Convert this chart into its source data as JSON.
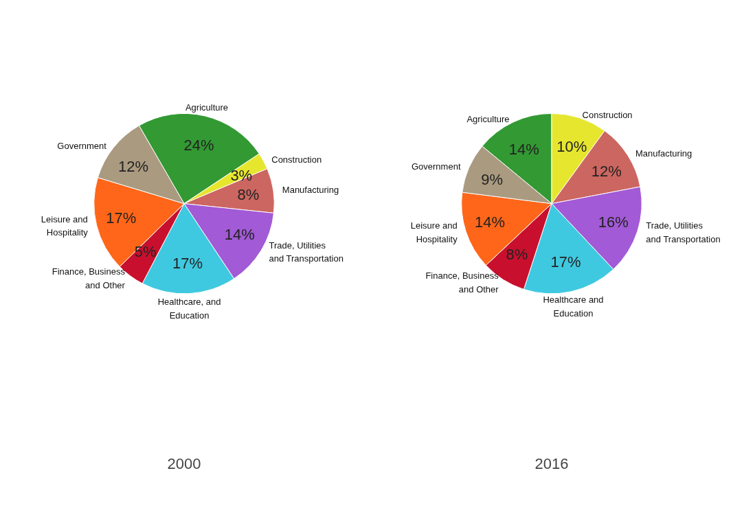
{
  "chart_data": [
    {
      "type": "pie",
      "title": "2000",
      "categories": [
        "Agriculture",
        "Construction",
        "Manufacturing",
        "Trade, Utilities and Transportation",
        "Healthcare, and Education",
        "Finance, Business and Other",
        "Leisure and Hospitality",
        "Government"
      ],
      "values": [
        24,
        3,
        8,
        14,
        17,
        5,
        17,
        12
      ],
      "value_labels": [
        "24%",
        "3%",
        "8%",
        "14%",
        "17%",
        "5%",
        "17%",
        "12%"
      ],
      "colors": [
        "#339933",
        "#e6e62e",
        "#cc6660",
        "#a25ad6",
        "#3fc9e0",
        "#c8102e",
        "#ff6619",
        "#aa9a80"
      ]
    },
    {
      "type": "pie",
      "title": "2016",
      "categories": [
        "Agriculture",
        "Construction",
        "Manufacturing",
        "Trade, Utilities and Transportation",
        "Healthcare and Education",
        "Finance, Business and Other",
        "Leisure and Hospitality",
        "Government"
      ],
      "values": [
        14,
        10,
        12,
        16,
        17,
        8,
        14,
        9
      ],
      "value_labels": [
        "14%",
        "10%",
        "12%",
        "16%",
        "17%",
        "8%",
        "14%",
        "9%"
      ],
      "colors": [
        "#339933",
        "#e6e62e",
        "#cc6660",
        "#a25ad6",
        "#3fc9e0",
        "#c8102e",
        "#ff6619",
        "#aa9a80"
      ]
    }
  ]
}
